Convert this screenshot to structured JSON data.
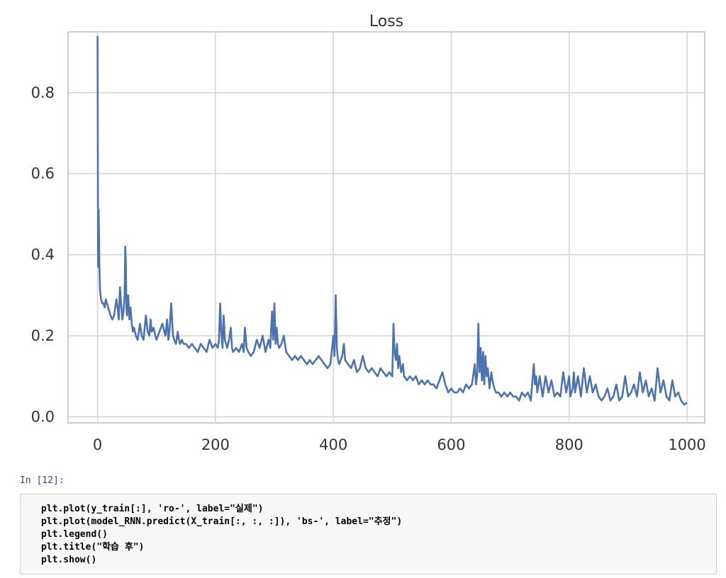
{
  "cell_prompt": "In [12]:",
  "code_lines": [
    "plt.plot(y_train[:], 'ro-', label=\"실제\")",
    "plt.plot(model_RNN.predict(X_train[:, :, :]), 'bs-', label=\"추정\")",
    "plt.legend()",
    "plt.title(\"학습 후\")",
    "plt.show()"
  ],
  "chart_data": {
    "type": "line",
    "title": "Loss",
    "xlabel": "",
    "ylabel": "",
    "xlim": [
      -50,
      1030
    ],
    "ylim": [
      -0.015,
      0.95
    ],
    "x_ticks": [
      "0",
      "200",
      "400",
      "600",
      "800",
      "1000"
    ],
    "y_ticks": [
      "0.0",
      "0.2",
      "0.4",
      "0.6",
      "0.8"
    ],
    "grid": true,
    "line_color": "#4c72b0",
    "series": [
      {
        "x": [
          0,
          1,
          2,
          3,
          4,
          5,
          6,
          8,
          10,
          12,
          14,
          16,
          18,
          20,
          22,
          25,
          28,
          30,
          32,
          34,
          36,
          38,
          40,
          42,
          44,
          46,
          47,
          48,
          49,
          50,
          52,
          54,
          56,
          58,
          60,
          62,
          65,
          68,
          70,
          72,
          75,
          78,
          80,
          82,
          85,
          88,
          90,
          92,
          95,
          98,
          100,
          105,
          110,
          115,
          118,
          120,
          122,
          125,
          128,
          130,
          133,
          136,
          138,
          140,
          143,
          146,
          150,
          155,
          160,
          165,
          170,
          175,
          180,
          185,
          190,
          195,
          200,
          204,
          206,
          208,
          210,
          212,
          214,
          216,
          218,
          220,
          223,
          226,
          228,
          230,
          235,
          240,
          245,
          248,
          250,
          253,
          256,
          260,
          265,
          270,
          275,
          280,
          285,
          290,
          293,
          296,
          298,
          300,
          302,
          304,
          306,
          308,
          312,
          316,
          320,
          325,
          330,
          335,
          340,
          345,
          350,
          355,
          360,
          365,
          370,
          375,
          380,
          385,
          390,
          395,
          400,
          402,
          404,
          406,
          408,
          410,
          415,
          418,
          420,
          425,
          430,
          435,
          440,
          445,
          450,
          455,
          460,
          465,
          470,
          475,
          480,
          485,
          490,
          495,
          500,
          502,
          504,
          506,
          508,
          510,
          512,
          515,
          518,
          520,
          525,
          530,
          535,
          540,
          545,
          550,
          555,
          560,
          565,
          570,
          575,
          580,
          585,
          590,
          595,
          600,
          605,
          610,
          615,
          620,
          625,
          630,
          635,
          640,
          642,
          644,
          646,
          648,
          650,
          652,
          654,
          656,
          658,
          660,
          662,
          665,
          668,
          670,
          673,
          676,
          680,
          685,
          690,
          695,
          700,
          705,
          710,
          715,
          720,
          725,
          730,
          735,
          740,
          742,
          744,
          746,
          750,
          755,
          760,
          765,
          770,
          775,
          780,
          785,
          790,
          795,
          800,
          802,
          804,
          806,
          808,
          810,
          815,
          820,
          825,
          830,
          835,
          840,
          845,
          850,
          855,
          860,
          865,
          870,
          875,
          880,
          885,
          890,
          895,
          900,
          905,
          910,
          915,
          920,
          925,
          930,
          935,
          940,
          945,
          950,
          955,
          960,
          965,
          970,
          975,
          980,
          985,
          990,
          995,
          1000
        ],
        "values": [
          0.94,
          0.37,
          0.51,
          0.38,
          0.32,
          0.3,
          0.29,
          0.28,
          0.28,
          0.27,
          0.29,
          0.28,
          0.27,
          0.26,
          0.25,
          0.24,
          0.25,
          0.27,
          0.29,
          0.27,
          0.24,
          0.32,
          0.28,
          0.24,
          0.26,
          0.3,
          0.42,
          0.38,
          0.27,
          0.25,
          0.3,
          0.24,
          0.27,
          0.23,
          0.21,
          0.22,
          0.2,
          0.19,
          0.21,
          0.23,
          0.2,
          0.19,
          0.22,
          0.25,
          0.21,
          0.2,
          0.24,
          0.21,
          0.22,
          0.2,
          0.19,
          0.21,
          0.23,
          0.2,
          0.24,
          0.19,
          0.21,
          0.28,
          0.2,
          0.19,
          0.18,
          0.21,
          0.19,
          0.18,
          0.19,
          0.18,
          0.18,
          0.17,
          0.18,
          0.17,
          0.16,
          0.18,
          0.17,
          0.16,
          0.19,
          0.17,
          0.18,
          0.17,
          0.19,
          0.28,
          0.21,
          0.17,
          0.25,
          0.19,
          0.18,
          0.17,
          0.19,
          0.22,
          0.17,
          0.16,
          0.17,
          0.16,
          0.18,
          0.16,
          0.22,
          0.17,
          0.16,
          0.15,
          0.16,
          0.19,
          0.17,
          0.2,
          0.16,
          0.19,
          0.17,
          0.26,
          0.19,
          0.28,
          0.18,
          0.22,
          0.18,
          0.17,
          0.18,
          0.2,
          0.16,
          0.15,
          0.14,
          0.15,
          0.14,
          0.15,
          0.14,
          0.13,
          0.14,
          0.13,
          0.14,
          0.15,
          0.14,
          0.13,
          0.12,
          0.13,
          0.2,
          0.15,
          0.3,
          0.17,
          0.14,
          0.13,
          0.15,
          0.18,
          0.14,
          0.13,
          0.12,
          0.14,
          0.11,
          0.12,
          0.15,
          0.12,
          0.11,
          0.12,
          0.11,
          0.1,
          0.12,
          0.11,
          0.1,
          0.11,
          0.1,
          0.23,
          0.16,
          0.14,
          0.18,
          0.12,
          0.15,
          0.11,
          0.13,
          0.1,
          0.09,
          0.1,
          0.09,
          0.1,
          0.08,
          0.09,
          0.08,
          0.09,
          0.08,
          0.08,
          0.07,
          0.09,
          0.11,
          0.08,
          0.06,
          0.07,
          0.06,
          0.06,
          0.07,
          0.06,
          0.08,
          0.07,
          0.08,
          0.13,
          0.08,
          0.1,
          0.23,
          0.11,
          0.17,
          0.09,
          0.16,
          0.08,
          0.15,
          0.1,
          0.12,
          0.07,
          0.11,
          0.09,
          0.07,
          0.06,
          0.06,
          0.05,
          0.06,
          0.05,
          0.06,
          0.05,
          0.05,
          0.04,
          0.06,
          0.05,
          0.06,
          0.04,
          0.13,
          0.08,
          0.1,
          0.06,
          0.1,
          0.05,
          0.1,
          0.06,
          0.09,
          0.05,
          0.06,
          0.05,
          0.11,
          0.06,
          0.1,
          0.05,
          0.06,
          0.07,
          0.11,
          0.06,
          0.1,
          0.05,
          0.12,
          0.06,
          0.1,
          0.06,
          0.08,
          0.05,
          0.04,
          0.05,
          0.07,
          0.04,
          0.05,
          0.08,
          0.04,
          0.05,
          0.1,
          0.05,
          0.06,
          0.08,
          0.05,
          0.11,
          0.06,
          0.09,
          0.05,
          0.07,
          0.04,
          0.12,
          0.06,
          0.09,
          0.05,
          0.04,
          0.09,
          0.05,
          0.06,
          0.04,
          0.03,
          0.035
        ]
      }
    ]
  }
}
